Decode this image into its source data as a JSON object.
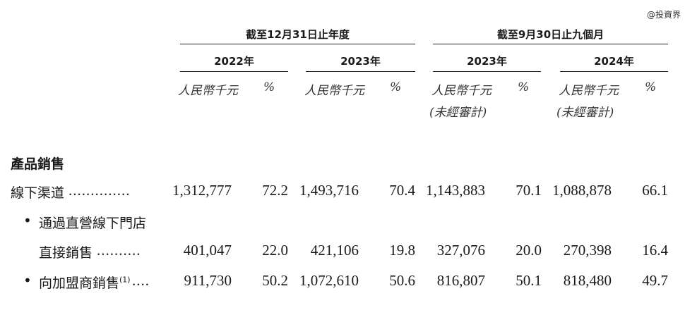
{
  "watermark": "@投資界",
  "header": {
    "group_fy": "截至12月31日止年度",
    "group_9m": "截至9月30日止九個月",
    "years": [
      "2022年",
      "2023年",
      "2023年",
      "2024年"
    ],
    "unit_rmb": "人民幣千元",
    "unit_pct": "%",
    "unaudited": "(未經審計)"
  },
  "section_title": "產品銷售",
  "rows": [
    {
      "label": "線下渠道",
      "dots": "..............",
      "values": [
        "1,312,777",
        "72.2",
        "1,493,716",
        "70.4",
        "1,143,883",
        "70.1",
        "1,088,878",
        "66.1"
      ]
    },
    {
      "bullet": "•",
      "label_line1": "通過直營線下門店",
      "label_line2": "直接銷售",
      "dots": "..........",
      "values": [
        "401,047",
        "22.0",
        "421,106",
        "19.8",
        "327,076",
        "20.0",
        "270,398",
        "16.4"
      ]
    },
    {
      "bullet": "•",
      "label": "向加盟商銷售",
      "footnote": "(1)",
      "dots": "....",
      "values": [
        "911,730",
        "50.2",
        "1,072,610",
        "50.6",
        "816,807",
        "50.1",
        "818,480",
        "49.7"
      ]
    }
  ]
}
